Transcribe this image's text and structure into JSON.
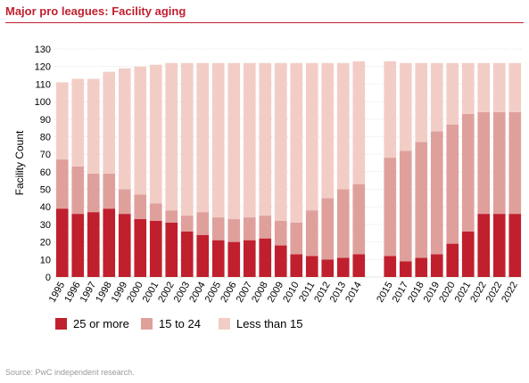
{
  "title": "Major pro leagues: Facility aging",
  "source": "Source: PwC independent research.",
  "colors": {
    "accent": "#c0202e",
    "s25": "#c0202e",
    "s15": "#dfa09c",
    "sLess": "#f2cdc6"
  },
  "chart_data": {
    "type": "bar",
    "stacked": true,
    "ylabel": "Facility Count",
    "xlabel": "",
    "ylim": [
      0,
      130
    ],
    "yticks": [
      0,
      10,
      20,
      30,
      40,
      50,
      60,
      70,
      80,
      90,
      100,
      110,
      120,
      130
    ],
    "grid": true,
    "legend_position": "bottom-left",
    "categories": [
      "1995",
      "1996",
      "1997",
      "1998",
      "1999",
      "2000",
      "2001",
      "2002",
      "2003",
      "2004",
      "2005",
      "2006",
      "2007",
      "2008",
      "2009",
      "2010",
      "2011",
      "2012",
      "2013",
      "2014",
      "",
      "2015",
      "2017",
      "2018",
      "2019",
      "2020",
      "2021",
      "2022",
      "2022",
      "2022"
    ],
    "series": [
      {
        "name": "25 or more",
        "values": [
          39,
          36,
          37,
          39,
          36,
          33,
          32,
          31,
          26,
          24,
          21,
          20,
          21,
          22,
          18,
          13,
          12,
          10,
          11,
          13,
          0,
          12,
          9,
          11,
          13,
          19,
          26,
          36,
          36,
          36
        ]
      },
      {
        "name": "15 to 24",
        "values": [
          28,
          27,
          22,
          20,
          14,
          14,
          10,
          7,
          9,
          13,
          13,
          13,
          13,
          13,
          14,
          18,
          26,
          35,
          39,
          40,
          0,
          56,
          63,
          66,
          70,
          68,
          67,
          58,
          58,
          58
        ]
      },
      {
        "name": "Less than 15",
        "values": [
          44,
          50,
          54,
          58,
          69,
          73,
          79,
          84,
          87,
          85,
          88,
          89,
          88,
          87,
          90,
          91,
          84,
          77,
          72,
          70,
          0,
          55,
          50,
          45,
          39,
          35,
          29,
          28,
          28,
          28
        ]
      }
    ]
  }
}
